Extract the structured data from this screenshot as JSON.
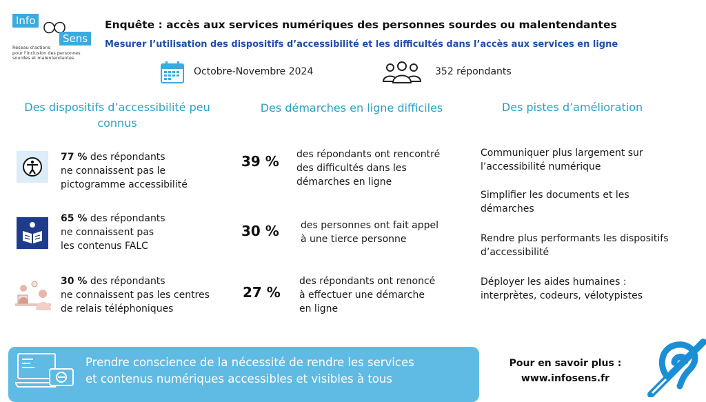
{
  "logo": {
    "word1": "Info",
    "word2": "Sens",
    "tagline_lines": [
      "Réseau d'actions",
      "pour l'inclusion des personnes",
      "sourdes et malentendantes"
    ]
  },
  "header": {
    "title": "Enquête : accès aux services numériques des personnes sourdes ou malentendantes",
    "subtitle": "Mesurer l’utilisation des dispositifs d’accessibilité et les difficultés dans l’accès aux services en ligne",
    "date": "Octobre-Novembre 2024",
    "respondents": "352 répondants"
  },
  "columns": {
    "left": {
      "heading": "Des dispositifs d’accessibilité peu connus",
      "items": [
        {
          "pct": "77 %",
          "l1": " des répondants",
          "l2": "ne connaissent pas le",
          "l3": "pictogramme accessibilité",
          "icon": "accessibility-icon"
        },
        {
          "pct": "65 %",
          "l1": " des répondants",
          "l2": "ne connaissent pas",
          "l3": "les contenus FALC",
          "icon": "easy-read-icon"
        },
        {
          "pct": "30 %",
          "l1": " des répondants",
          "l2": "ne connaissent pas les centres",
          "l3": "de relais téléphoniques",
          "icon": "relay-center-icon"
        }
      ]
    },
    "middle": {
      "heading": "Des démarches en ligne difficiles",
      "items": [
        {
          "pct": "39 %",
          "lines": [
            "des répondants ont rencontré",
            "des difficultés dans les",
            "démarches en ligne"
          ]
        },
        {
          "pct": "30 %",
          "lines": [
            "des personnes ont fait appel",
            "à une tierce personne"
          ]
        },
        {
          "pct": "27 %",
          "lines": [
            "des répondants ont renoncé",
            "à effectuer une démarche",
            "en ligne"
          ]
        }
      ]
    },
    "right": {
      "heading": "Des pistes d’amélioration",
      "items": [
        {
          "lines": [
            "Communiquer plus largement sur",
            "l’accessibilité numérique"
          ]
        },
        {
          "lines": [
            "Simplifier les documents et les",
            "démarches"
          ]
        },
        {
          "lines": [
            "Rendre plus performants les dispositifs",
            "d’accessibilité"
          ]
        },
        {
          "lines": [
            "Déployer les aides humaines :",
            "interprètes, codeurs, vélotypistes"
          ]
        }
      ]
    }
  },
  "banner": {
    "line1": "Prendre conscience de la nécessité de rendre les services",
    "line2": "et contenus numériques accessibles et visibles à tous"
  },
  "more": {
    "label": "Pour en savoir plus :",
    "url": "www.infosens.fr"
  },
  "colors": {
    "accent": "#2aa0c3",
    "subtitle": "#1f4fa6",
    "banner": "#5fbbe3",
    "icon_blue": "#1f3c8c",
    "hearing_icon": "#1b8fd6"
  }
}
